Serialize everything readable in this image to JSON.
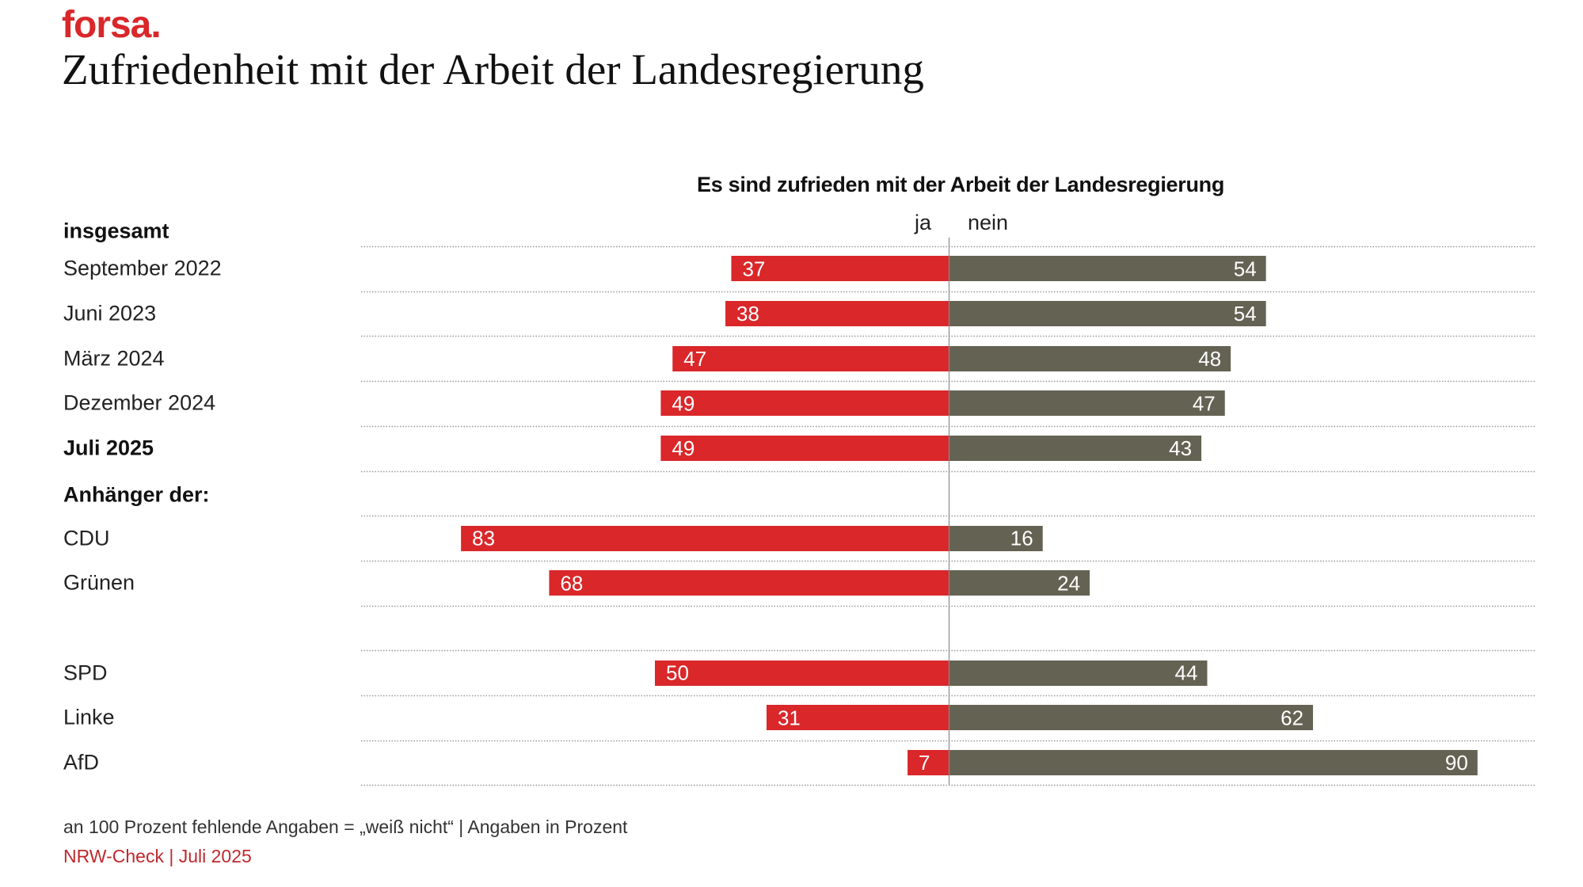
{
  "header": {
    "logo": "forsa.",
    "title": "Zufriedenheit mit der Arbeit der Landesregierung"
  },
  "colors": {
    "ja": "#d9272a",
    "nein": "#646253",
    "brand": "#d9272a",
    "gridline": "#9a9a9a"
  },
  "chart_data": {
    "type": "bar",
    "orientation": "horizontal-diverging",
    "title": "Es sind zufrieden mit der Arbeit der Landesregierung",
    "legend": [
      "ja",
      "nein"
    ],
    "unit": "Prozent",
    "xlim": [
      -90,
      90
    ],
    "grid": "dotted row separators",
    "groups": [
      {
        "heading": "insgesamt",
        "rows": [
          {
            "label": "September 2022",
            "ja": 37,
            "nein": 54,
            "bold": false
          },
          {
            "label": "Juni  2023",
            "ja": 38,
            "nein": 54,
            "bold": false
          },
          {
            "label": "März 2024",
            "ja": 47,
            "nein": 48,
            "bold": false
          },
          {
            "label": "Dezember 2024",
            "ja": 49,
            "nein": 47,
            "bold": false
          },
          {
            "label": "Juli  2025",
            "ja": 49,
            "nein": 43,
            "bold": true
          }
        ]
      },
      {
        "heading": "Anhänger der:",
        "rows": [
          {
            "label": "CDU",
            "ja": 83,
            "nein": 16,
            "bold": false
          },
          {
            "label": "Grünen",
            "ja": 68,
            "nein": 24,
            "bold": false
          },
          {
            "label": "",
            "ja": null,
            "nein": null,
            "bold": false
          },
          {
            "label": "SPD",
            "ja": 50,
            "nein": 44,
            "bold": false
          },
          {
            "label": "Linke",
            "ja": 31,
            "nein": 62,
            "bold": false
          },
          {
            "label": "AfD",
            "ja": 7,
            "nein": 90,
            "bold": false
          }
        ]
      }
    ]
  },
  "legend": {
    "ja": "ja",
    "nein": "nein"
  },
  "footer": {
    "note": "an 100 Prozent fehlende Angaben = „weiß nicht“ | Angaben in Prozent",
    "source": "NRW-Check | Juli 2025"
  }
}
